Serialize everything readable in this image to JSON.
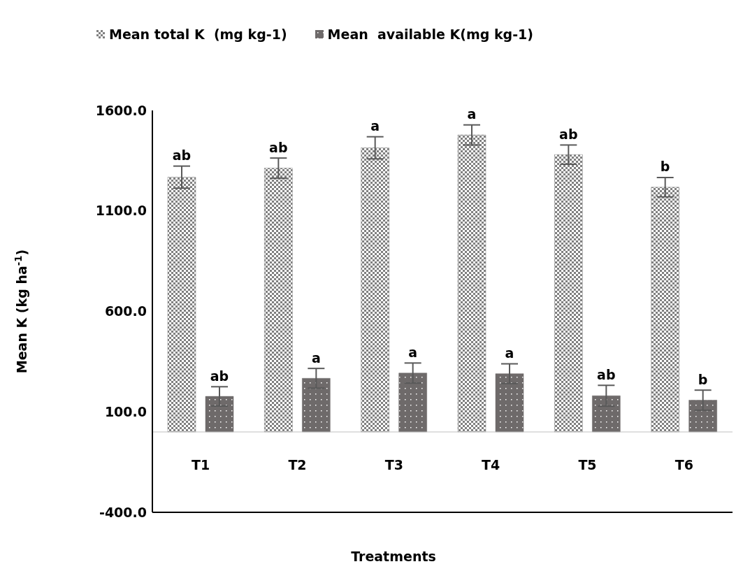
{
  "chart_data": {
    "type": "bar",
    "xlabel": "Treatments",
    "ylabel": "Mean K (kg ha$^{-1}$)",
    "categories": [
      "T1",
      "T2",
      "T3",
      "T4",
      "T5",
      "T6"
    ],
    "series": [
      {
        "name": "Mean total K  (mg kg-1)",
        "color": "#808080",
        "values": [
          1268,
          1313,
          1414,
          1478,
          1380,
          1218
        ],
        "errors": [
          55,
          50,
          55,
          50,
          48,
          48
        ],
        "value_labels": [
          "ab",
          "ab",
          "a",
          "a",
          "ab",
          "b"
        ]
      },
      {
        "name": "Mean  available K(mg kg-1)",
        "color": "#6e6a6a",
        "values": [
          177,
          267,
          293,
          290,
          180,
          158
        ],
        "errors": [
          48,
          49,
          50,
          49,
          52,
          50
        ],
        "value_labels": [
          "ab",
          "a",
          "a",
          "a",
          "ab",
          "b"
        ]
      }
    ],
    "ylim": [
      -400,
      1600
    ],
    "yticks": [
      {
        "value": -400,
        "label": "-400.0"
      },
      {
        "value": 100,
        "label": "100.0"
      },
      {
        "value": 600,
        "label": "600.0"
      },
      {
        "value": 1100,
        "label": "1100.0"
      },
      {
        "value": 1600,
        "label": "1600.0"
      }
    ],
    "grid": false,
    "legend": "top"
  }
}
